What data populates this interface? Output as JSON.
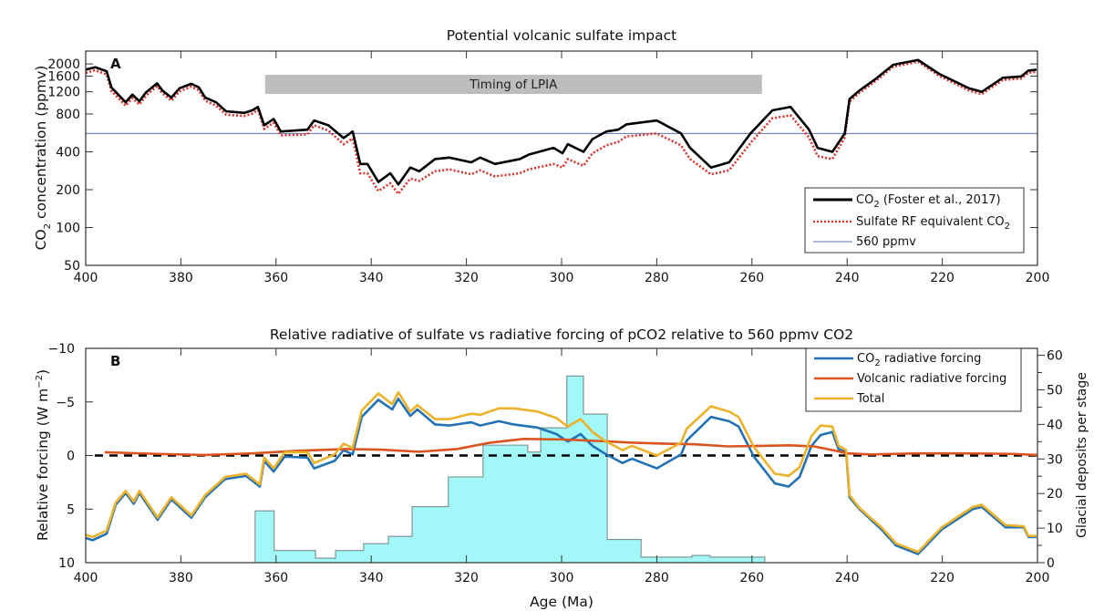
{
  "chart_data": [
    {
      "panel": "A",
      "type": "line",
      "title": "Potential volcanic sulfate impact",
      "panel_label": "A",
      "xlabel": "",
      "ylabel": "CO2 concentration (ppmv)",
      "ylabel_parts": {
        "pre": "CO",
        "sub": "2",
        "post": " concentration (ppmv)"
      },
      "xlim": [
        400,
        200
      ],
      "xreversed": true,
      "ylim": [
        50,
        2530
      ],
      "yscale": "log",
      "xticks": [
        400,
        380,
        360,
        340,
        320,
        300,
        280,
        260,
        240,
        220,
        200
      ],
      "yticks": [
        50,
        100,
        200,
        400,
        800,
        1200,
        1600,
        2000
      ],
      "legend_position": "bottom-right",
      "annotation": {
        "label": "Timing of LPIA",
        "x_start": 362.3,
        "x_end": 257.9,
        "color": "#bdbdbd"
      },
      "reference_line": {
        "name": "560 ppmv",
        "value": 560,
        "color": "#5b6fae"
      },
      "series": [
        {
          "name": "CO2 (Foster et al., 2017)",
          "legend_parts": {
            "pre": "CO",
            "sub": "2",
            "post": " (Foster et al., 2017)"
          },
          "color": "#000000",
          "style": "solid",
          "x": [
            400,
            398,
            395.6,
            394.6,
            391.6,
            390.2,
            388.7,
            387.4,
            385,
            383.9,
            382,
            380.3,
            377.8,
            376.2,
            374.9,
            372.6,
            370.5,
            366.7,
            365,
            363.8,
            362.5,
            360.5,
            359,
            353.4,
            352,
            349,
            345.8,
            343.9,
            342.3,
            340.8,
            338.5,
            336,
            334.3,
            331.8,
            329.9,
            326.6,
            323.6,
            319,
            317.1,
            314,
            308.8,
            306.9,
            301.7,
            299.8,
            298.7,
            295.4,
            293.5,
            290.6,
            288.1,
            286.4,
            280,
            274.9,
            273,
            268.6,
            264.8,
            260.3,
            255.7,
            251.9,
            248,
            246.2,
            243.1,
            240.5,
            239.5,
            237.4,
            234,
            230.3,
            225.1,
            220.7,
            214.4,
            211.7,
            207.3,
            203.4,
            201.9,
            200.2
          ],
          "y": [
            1800,
            1880,
            1750,
            1300,
            990,
            1140,
            1010,
            1180,
            1400,
            1230,
            1080,
            1280,
            1390,
            1300,
            1080,
            990,
            840,
            815,
            855,
            910,
            650,
            730,
            580,
            600,
            710,
            650,
            515,
            580,
            320,
            320,
            230,
            270,
            220,
            300,
            280,
            350,
            360,
            330,
            360,
            320,
            350,
            380,
            430,
            390,
            460,
            400,
            505,
            580,
            600,
            660,
            710,
            560,
            430,
            300,
            330,
            560,
            855,
            910,
            600,
            430,
            400,
            560,
            1050,
            1230,
            1520,
            1970,
            2150,
            1670,
            1280,
            1200,
            1550,
            1590,
            1770,
            1800
          ]
        },
        {
          "name": "Sulfate RF equivalent CO2",
          "legend_parts": {
            "pre": "Sulfate RF equivalent CO",
            "sub": "2",
            "post": ""
          },
          "color": "#e0302a",
          "style": "dotted",
          "x": [
            400,
            398,
            395.6,
            394.6,
            391.6,
            390.2,
            388.7,
            387.4,
            385,
            383.9,
            382,
            380.3,
            377.8,
            376.2,
            374.9,
            372.6,
            370.5,
            366.7,
            365,
            363.8,
            362.5,
            360.5,
            359,
            353.4,
            352,
            349,
            345.8,
            343.9,
            342.3,
            340.8,
            338.5,
            336,
            334.3,
            331.8,
            329.9,
            326.6,
            323.6,
            319,
            317.1,
            314,
            308.8,
            306.9,
            301.7,
            299.8,
            298.7,
            295.4,
            293.5,
            290.6,
            288.1,
            286.4,
            280,
            274.9,
            273,
            268.6,
            264.8,
            260.3,
            255.7,
            251.9,
            248,
            246.2,
            243.1,
            240.5,
            239.5,
            237.4,
            234,
            230.3,
            225.1,
            220.7,
            214.4,
            211.7,
            207.3,
            203.4,
            201.9,
            200.2
          ],
          "y": [
            1700,
            1780,
            1650,
            1220,
            930,
            1070,
            950,
            1110,
            1330,
            1170,
            1020,
            1210,
            1320,
            1230,
            1020,
            930,
            790,
            770,
            805,
            860,
            610,
            680,
            540,
            550,
            650,
            590,
            460,
            510,
            270,
            270,
            195,
            225,
            185,
            245,
            235,
            280,
            290,
            265,
            285,
            255,
            270,
            290,
            320,
            300,
            350,
            310,
            390,
            450,
            480,
            530,
            560,
            450,
            350,
            265,
            285,
            470,
            740,
            780,
            520,
            370,
            350,
            520,
            1000,
            1180,
            1460,
            1900,
            2080,
            1610,
            1230,
            1150,
            1490,
            1530,
            1700,
            1730
          ]
        }
      ]
    },
    {
      "panel": "B",
      "type": "line",
      "title": "Relative radiative of sulfate vs radiative forcing of pCO2 relative to 560 ppmv CO2",
      "panel_label": "B",
      "xlabel": "Age (Ma)",
      "ylabel": "Relative forcing (W m-2)",
      "ylabel_parts": {
        "pre": "Relative forcing (W m",
        "sup": "−2",
        "post": ")"
      },
      "ylabel_right": "Glacial deposits per stage",
      "xlim": [
        400,
        200
      ],
      "xreversed": true,
      "ylim": [
        -10,
        10
      ],
      "yreversed": true,
      "ylim_right": [
        0,
        62
      ],
      "xticks": [
        400,
        380,
        360,
        340,
        320,
        300,
        280,
        260,
        240,
        220,
        200
      ],
      "yticks": [
        -10,
        -5,
        0,
        5,
        10
      ],
      "ytick_labels": [
        "−10",
        "−5",
        "0",
        "5",
        "10"
      ],
      "yticks_right": [
        0,
        10,
        20,
        30,
        40,
        50,
        60
      ],
      "legend_position": "top-right",
      "zero_line": {
        "value": 0,
        "color": "#000000",
        "style": "dashed"
      },
      "histogram": {
        "name": "Glacial deposits per stage",
        "color": "#a2f7f9",
        "edge_color": "#7a8f90",
        "bins": [
          {
            "from": 364.4,
            "to": 360.4,
            "value": 15
          },
          {
            "from": 360.4,
            "to": 351.7,
            "value": 3.5
          },
          {
            "from": 351.7,
            "to": 347.5,
            "value": 1.3
          },
          {
            "from": 347.5,
            "to": 341.6,
            "value": 3.5
          },
          {
            "from": 341.6,
            "to": 336.4,
            "value": 5.5
          },
          {
            "from": 336.4,
            "to": 331.4,
            "value": 7.6
          },
          {
            "from": 331.4,
            "to": 323.8,
            "value": 16.2
          },
          {
            "from": 323.8,
            "to": 316.5,
            "value": 24.8
          },
          {
            "from": 316.5,
            "to": 307.1,
            "value": 34
          },
          {
            "from": 307.1,
            "to": 304.4,
            "value": 32
          },
          {
            "from": 304.4,
            "to": 298.9,
            "value": 39
          },
          {
            "from": 298.9,
            "to": 295.4,
            "value": 54
          },
          {
            "from": 295.4,
            "to": 290.4,
            "value": 43
          },
          {
            "from": 290.4,
            "to": 283.3,
            "value": 6.7
          },
          {
            "from": 283.3,
            "to": 272.6,
            "value": 1.6
          },
          {
            "from": 272.6,
            "to": 268.8,
            "value": 2.1
          },
          {
            "from": 268.8,
            "to": 257.3,
            "value": 1.6
          }
        ]
      },
      "series": [
        {
          "name": "CO2 radiative forcing",
          "legend_parts": {
            "pre": "CO",
            "sub": "2",
            "post": " radiative forcing"
          },
          "color": "#2372b5",
          "x": [
            400,
            398.5,
            395.6,
            393.7,
            391.6,
            389.9,
            388.7,
            384.9,
            382,
            377.8,
            374.9,
            370.7,
            366.3,
            363.4,
            362.5,
            360.5,
            358.2,
            353.4,
            352,
            347.7,
            345.8,
            343.9,
            342,
            338.5,
            335.6,
            334.3,
            331.8,
            330.3,
            326.6,
            323.6,
            319,
            317.1,
            313.2,
            310.1,
            305,
            301.1,
            298.7,
            296,
            293.5,
            291,
            287.2,
            285.2,
            280,
            274.9,
            273.7,
            268.6,
            264.8,
            262.8,
            259.6,
            255.2,
            252.3,
            250,
            247.5,
            245.6,
            243.1,
            241.8,
            240.2,
            239.5,
            237.4,
            232.8,
            229.7,
            225.1,
            220.1,
            213.6,
            211.7,
            206.7,
            202.9,
            201.9,
            200.2
          ],
          "y": [
            7.7,
            7.9,
            7.3,
            4.6,
            3.5,
            4.5,
            3.5,
            6.0,
            4.1,
            5.8,
            3.9,
            2.2,
            1.9,
            2.9,
            0.5,
            1.5,
            0.1,
            0.2,
            1.2,
            0.5,
            -0.5,
            -0.1,
            -3.6,
            -5.2,
            -4.3,
            -5.3,
            -3.7,
            -4.3,
            -2.9,
            -2.8,
            -3.1,
            -2.8,
            -3.2,
            -2.9,
            -2.6,
            -2.0,
            -1.3,
            -2.0,
            -0.9,
            -0.2,
            0.7,
            0.3,
            1.2,
            -0.1,
            -1.4,
            -3.6,
            -3.2,
            -2.7,
            0.1,
            2.6,
            2.9,
            2.0,
            -0.9,
            -1.9,
            -2.2,
            -0.6,
            -0.3,
            3.9,
            5.0,
            6.9,
            8.4,
            9.2,
            6.9,
            5.0,
            4.8,
            6.7,
            6.7,
            7.6,
            7.6
          ]
        },
        {
          "name": "Volcanic radiative forcing",
          "legend_parts": {
            "pre": "Volcanic radiative forcing",
            "sub": "",
            "post": ""
          },
          "color": "#d9541e",
          "x": [
            396,
            385,
            375,
            365,
            355,
            345,
            338,
            330,
            322,
            315,
            308,
            300,
            292,
            285,
            278,
            272,
            265,
            258,
            252,
            247,
            243,
            240,
            235,
            225,
            215,
            205,
            200
          ],
          "y": [
            -0.3,
            -0.15,
            -0.05,
            -0.2,
            -0.45,
            -0.6,
            -0.55,
            -0.35,
            -0.6,
            -1.2,
            -1.55,
            -1.5,
            -1.35,
            -1.2,
            -1.1,
            -1.05,
            -0.85,
            -0.9,
            -0.95,
            -0.85,
            -0.5,
            -0.2,
            -0.1,
            -0.2,
            -0.2,
            -0.15,
            -0.05
          ]
        },
        {
          "name": "Total",
          "legend_parts": {
            "pre": "Total",
            "sub": "",
            "post": ""
          },
          "color": "#ecb22a",
          "x": [
            400,
            398.5,
            395.6,
            393.7,
            391.6,
            389.9,
            388.7,
            384.9,
            382,
            377.8,
            374.9,
            370.7,
            366.3,
            363.4,
            362.5,
            360.5,
            358.2,
            353.4,
            352,
            347.7,
            345.8,
            343.9,
            342,
            338.5,
            335.6,
            334.3,
            331.8,
            330.3,
            326.6,
            323.6,
            319,
            317.1,
            313.2,
            310.1,
            305,
            301.1,
            298.7,
            296,
            293.5,
            291,
            287.2,
            285.2,
            280,
            274.9,
            273.7,
            268.6,
            264.8,
            262.8,
            259.6,
            255.2,
            252.3,
            250,
            247.5,
            245.6,
            243.1,
            241.8,
            240.2,
            239.5,
            237.4,
            232.8,
            229.7,
            225.1,
            220.1,
            213.6,
            211.7,
            206.7,
            202.9,
            201.9,
            200.2
          ],
          "y": [
            7.4,
            7.6,
            7.0,
            4.4,
            3.3,
            4.3,
            3.3,
            5.8,
            3.9,
            5.6,
            3.7,
            2.0,
            1.7,
            2.7,
            0.2,
            1.2,
            -0.3,
            -0.3,
            0.7,
            -0.1,
            -1.1,
            -0.7,
            -4.2,
            -5.8,
            -4.8,
            -5.9,
            -4.1,
            -4.7,
            -3.4,
            -3.4,
            -3.9,
            -3.8,
            -4.4,
            -4.4,
            -4.1,
            -3.5,
            -2.7,
            -3.4,
            -2.2,
            -1.4,
            -0.5,
            -0.9,
            -0.0,
            -1.2,
            -2.5,
            -4.6,
            -4.1,
            -3.6,
            -0.8,
            1.7,
            1.9,
            1.1,
            -1.8,
            -2.8,
            -2.7,
            -0.9,
            -0.5,
            3.7,
            4.9,
            6.7,
            8.2,
            9.0,
            6.7,
            4.8,
            4.6,
            6.5,
            6.6,
            7.5,
            7.5
          ]
        }
      ]
    }
  ]
}
